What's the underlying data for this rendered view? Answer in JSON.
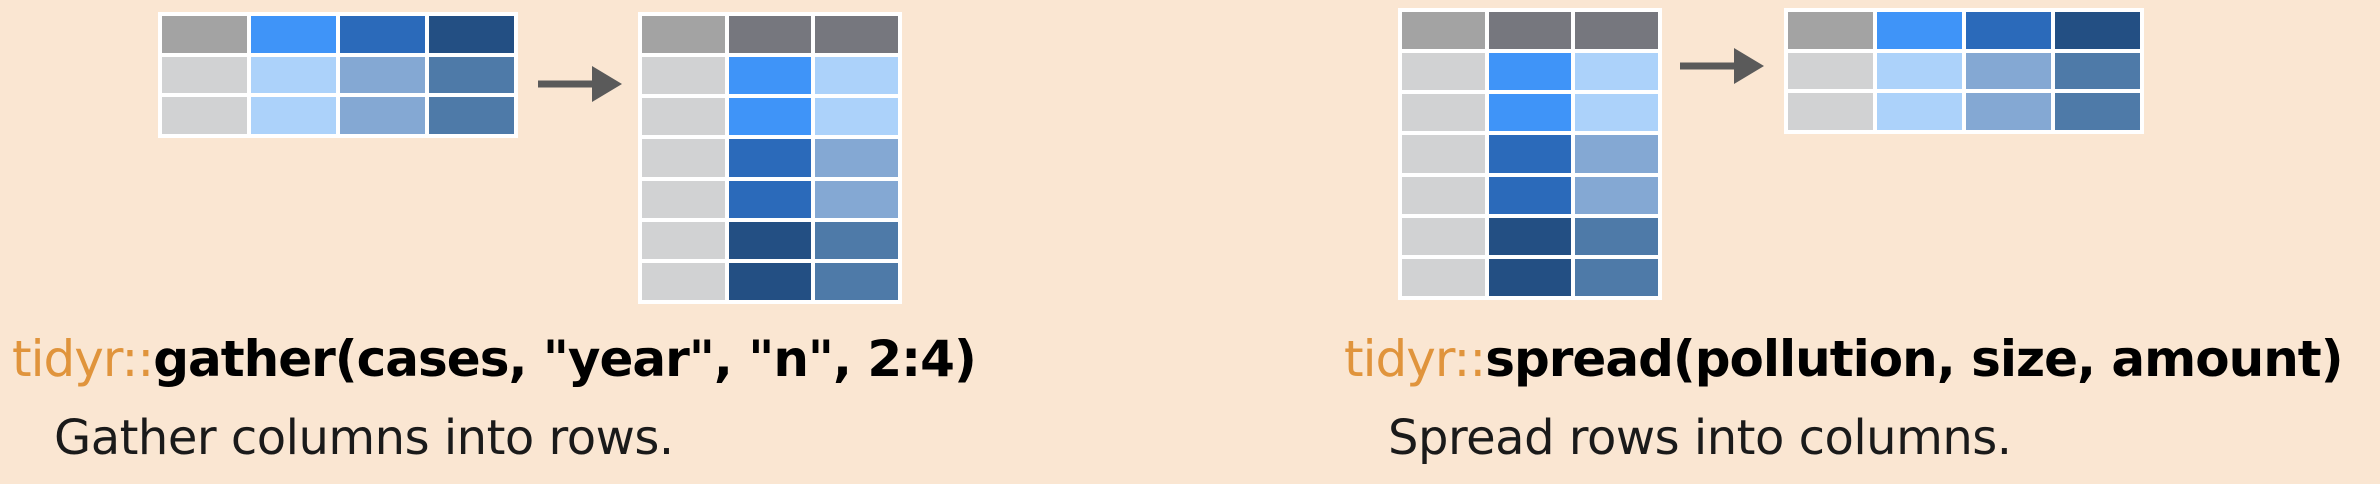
{
  "colors": {
    "background": "#fae6d2",
    "package": "#e0943c",
    "arrow": "#5a5a5a",
    "grays": [
      "#a3a3a3",
      "#76777e",
      "#d1d2d3"
    ],
    "blues": [
      "#3f94f8",
      "#2b6aba",
      "#234f83",
      "#acd2fa",
      "#84a8d3",
      "#4e7aa8"
    ]
  },
  "panels": [
    {
      "name": "gather",
      "package": "tidyr::",
      "call": "gather(cases, \"year\", \"n\", 2:4)",
      "description": "Gather columns into rows.",
      "before": [
        [
          "#a3a3a3",
          "#3f94f8",
          "#2b6aba",
          "#234f83"
        ],
        [
          "#d1d2d3",
          "#acd2fa",
          "#84a8d3",
          "#4e7aa8"
        ],
        [
          "#d1d2d3",
          "#acd2fa",
          "#84a8d3",
          "#4e7aa8"
        ]
      ],
      "after": [
        [
          "#a3a3a3",
          "#76777e",
          "#76777e"
        ],
        [
          "#d1d2d3",
          "#3f94f8",
          "#acd2fa"
        ],
        [
          "#d1d2d3",
          "#3f94f8",
          "#acd2fa"
        ],
        [
          "#d1d2d3",
          "#2b6aba",
          "#84a8d3"
        ],
        [
          "#d1d2d3",
          "#2b6aba",
          "#84a8d3"
        ],
        [
          "#d1d2d3",
          "#234f83",
          "#4e7aa8"
        ],
        [
          "#d1d2d3",
          "#234f83",
          "#4e7aa8"
        ]
      ]
    },
    {
      "name": "spread",
      "package": "tidyr::",
      "call": "spread(pollution, size, amount)",
      "description": "Spread rows into columns.",
      "before": [
        [
          "#a3a3a3",
          "#76777e",
          "#76777e"
        ],
        [
          "#d1d2d3",
          "#3f94f8",
          "#acd2fa"
        ],
        [
          "#d1d2d3",
          "#3f94f8",
          "#acd2fa"
        ],
        [
          "#d1d2d3",
          "#2b6aba",
          "#84a8d3"
        ],
        [
          "#d1d2d3",
          "#2b6aba",
          "#84a8d3"
        ],
        [
          "#d1d2d3",
          "#234f83",
          "#4e7aa8"
        ],
        [
          "#d1d2d3",
          "#234f83",
          "#4e7aa8"
        ]
      ],
      "after": [
        [
          "#a3a3a3",
          "#3f94f8",
          "#2b6aba",
          "#234f83"
        ],
        [
          "#d1d2d3",
          "#acd2fa",
          "#84a8d3",
          "#4e7aa8"
        ],
        [
          "#d1d2d3",
          "#acd2fa",
          "#84a8d3",
          "#4e7aa8"
        ]
      ]
    }
  ]
}
